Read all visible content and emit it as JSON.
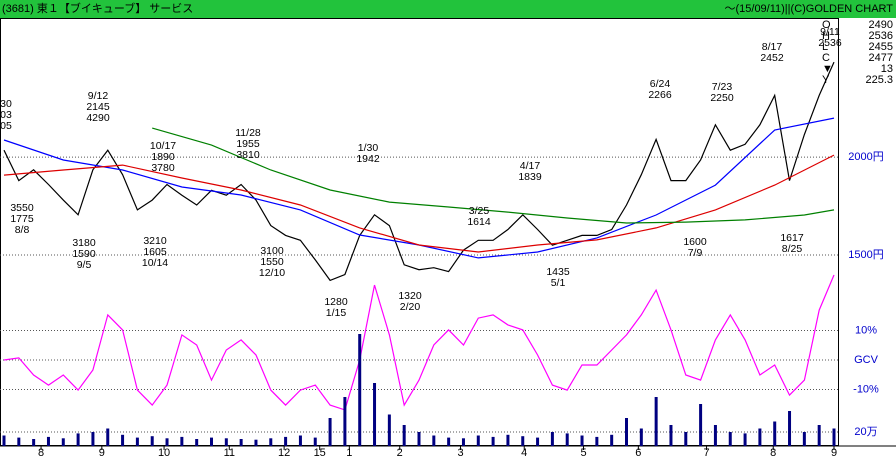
{
  "header": {
    "title": "(3681) 東１【ブイキューブ】 サービス",
    "source": "～(15/09/11)||(C)GOLDEN CHART"
  },
  "quote": [
    {
      "label": "O",
      "value": 2490
    },
    {
      "label": "H",
      "value": 2536
    },
    {
      "label": "L",
      "value": 2455
    },
    {
      "label": "C",
      "value": 2477
    },
    {
      "label": "▼",
      "value": 13
    },
    {
      "label": "Y",
      "value": 225.3
    }
  ],
  "annotations": [
    [
      "30",
      "03",
      "05"
    ],
    [
      "3550",
      "1775",
      "8/8"
    ],
    [
      "3180",
      "1590",
      "9/5"
    ],
    [
      "9/12",
      "2145",
      "4290"
    ],
    [
      "10/17",
      "1890",
      "3780"
    ],
    [
      "3210",
      "1605",
      "10/14"
    ],
    [
      "11/28",
      "1955",
      "3810"
    ],
    [
      "3100",
      "1550",
      "12/10"
    ],
    [
      "1/30",
      "1942"
    ],
    [
      "1280",
      "1/15"
    ],
    [
      "1320",
      "2/20"
    ],
    [
      "3/25",
      "1614"
    ],
    [
      "4/17",
      "1839"
    ],
    [
      "1435",
      "5/1"
    ],
    [
      "6/24",
      "2266"
    ],
    [
      "1600",
      "7/9"
    ],
    [
      "7/23",
      "2250"
    ],
    [
      "8/17",
      "2452"
    ],
    [
      "1617",
      "8/25"
    ],
    [
      "9/11",
      "2536"
    ]
  ],
  "chart_data": [
    {
      "type": "line",
      "x": [
        0,
        1,
        2,
        3,
        4,
        5,
        6,
        7,
        8,
        9,
        10,
        11,
        12,
        13,
        14,
        15,
        16,
        17,
        18,
        19,
        20,
        21,
        22,
        23,
        24,
        25,
        26,
        27,
        28,
        29,
        30,
        31,
        32,
        33,
        34,
        35,
        36,
        37,
        38,
        39,
        40,
        41,
        42,
        43,
        44,
        45,
        46,
        47,
        48,
        49,
        50,
        51,
        52,
        53,
        54,
        55,
        56
      ],
      "xlim": [
        0,
        56
      ],
      "xticks": [
        {
          "value": 2.5,
          "label": "8"
        },
        {
          "value": 6.6,
          "label": "9"
        },
        {
          "value": 10.8,
          "label": "10"
        },
        {
          "value": 15.2,
          "label": "11"
        },
        {
          "value": 18.9,
          "label": "12"
        },
        {
          "value": 21.3,
          "label": "15"
        },
        {
          "value": 23.3,
          "label": "1"
        },
        {
          "value": 26.7,
          "label": "2"
        },
        {
          "value": 30.8,
          "label": "3"
        },
        {
          "value": 35.1,
          "label": "4"
        },
        {
          "value": 39.1,
          "label": "5"
        },
        {
          "value": 42.8,
          "label": "6"
        },
        {
          "value": 47.4,
          "label": "7"
        },
        {
          "value": 51.9,
          "label": "8"
        },
        {
          "value": 56,
          "label": "9"
        }
      ],
      "ylim": [
        1270,
        2700
      ],
      "yticks": [
        {
          "value": 2000,
          "label": "2000円"
        },
        {
          "value": 1500,
          "label": "1500円"
        }
      ],
      "grid": true,
      "series": [
        {
          "color": "#000000",
          "values": [
            2035,
            1880,
            1935,
            1860,
            1780,
            1705,
            1935,
            2035,
            1910,
            1730,
            1780,
            1860,
            1805,
            1755,
            1830,
            1805,
            1860,
            1780,
            1650,
            1600,
            1575,
            1475,
            1370,
            1400,
            1600,
            1705,
            1650,
            1450,
            1425,
            1435,
            1415,
            1525,
            1575,
            1575,
            1630,
            1705,
            1630,
            1550,
            1575,
            1600,
            1600,
            1630,
            1755,
            1910,
            2090,
            1880,
            1880,
            1985,
            2165,
            2035,
            2065,
            2165,
            2315,
            1880,
            2115,
            2315,
            2485
          ]
        },
        {
          "color": "#0000ff",
          "x": [
            0,
            4,
            8,
            12,
            16,
            20,
            24,
            28,
            32,
            36,
            40,
            44,
            48,
            52,
            56
          ],
          "values": [
            2087,
            1985,
            1934,
            1847,
            1806,
            1730,
            1602,
            1551,
            1485,
            1515,
            1587,
            1704,
            1857,
            2138,
            2199
          ]
        },
        {
          "color": "#dd0000",
          "x": [
            0,
            4,
            8,
            12,
            16,
            20,
            24,
            28,
            32,
            36,
            40,
            44,
            48,
            52,
            56
          ],
          "values": [
            1908,
            1934,
            1959,
            1893,
            1832,
            1755,
            1638,
            1551,
            1515,
            1551,
            1577,
            1638,
            1730,
            1857,
            2010
          ]
        },
        {
          "color": "#008000",
          "x": [
            10,
            14,
            18,
            22,
            26,
            30,
            34,
            38,
            42,
            46,
            50,
            54,
            56
          ],
          "values": [
            2148,
            2061,
            1934,
            1832,
            1770,
            1745,
            1719,
            1689,
            1663,
            1668,
            1679,
            1704,
            1730
          ]
        }
      ]
    },
    {
      "type": "line",
      "x": [
        0,
        1,
        2,
        3,
        4,
        5,
        6,
        7,
        8,
        9,
        10,
        11,
        12,
        13,
        14,
        15,
        16,
        17,
        18,
        19,
        20,
        21,
        22,
        23,
        24,
        25,
        26,
        27,
        28,
        29,
        30,
        31,
        32,
        33,
        34,
        35,
        36,
        37,
        38,
        39,
        40,
        41,
        42,
        43,
        44,
        45,
        46,
        47,
        48,
        49,
        50,
        51,
        52,
        53,
        54,
        55,
        56
      ],
      "xlim": [
        0,
        56
      ],
      "ylim": [
        -20,
        30
      ],
      "yticks": [
        {
          "value": 10,
          "label": "10%"
        },
        {
          "value": 0,
          "label": "GCV"
        },
        {
          "value": -10,
          "label": "-10%"
        }
      ],
      "grid": true,
      "series": [
        {
          "color": "#ff00ff",
          "values": [
            0,
            0.7,
            -5.1,
            -8.5,
            -5.1,
            -10.2,
            -3.4,
            15.3,
            10.2,
            -10.2,
            -15.3,
            -8.5,
            8.5,
            5.1,
            -6.8,
            3.4,
            6.8,
            1.7,
            -10.2,
            -15.3,
            -10.2,
            -8.5,
            -15.3,
            -16.9,
            0,
            25.4,
            8.5,
            -15.3,
            -6.8,
            5.1,
            10.2,
            5.1,
            14.2,
            15.3,
            11.9,
            10.2,
            1.7,
            -8.5,
            -10.2,
            -1.7,
            -1.7,
            3.4,
            8.5,
            15.3,
            23.7,
            10.2,
            -5.1,
            -6.8,
            6.8,
            15.3,
            6.8,
            -5.1,
            -1.7,
            -11.9,
            -6.8,
            16.9,
            28.8
          ]
        }
      ]
    },
    {
      "type": "bar",
      "x": [
        0,
        1,
        2,
        3,
        4,
        5,
        6,
        7,
        8,
        9,
        10,
        11,
        12,
        13,
        14,
        15,
        16,
        17,
        18,
        19,
        20,
        21,
        22,
        23,
        24,
        25,
        26,
        27,
        28,
        29,
        30,
        31,
        32,
        33,
        34,
        35,
        36,
        37,
        38,
        39,
        40,
        41,
        42,
        43,
        44,
        45,
        46,
        47,
        48,
        49,
        50,
        51,
        52,
        53,
        54,
        55,
        56
      ],
      "xlim": [
        0,
        56
      ],
      "ylim": [
        0,
        1700000
      ],
      "yticks": [
        {
          "value": 200000,
          "label": "20万"
        }
      ],
      "color": "#000080",
      "values": [
        150000,
        120000,
        100000,
        130000,
        110000,
        180000,
        200000,
        250000,
        160000,
        120000,
        140000,
        110000,
        130000,
        100000,
        120000,
        110000,
        100000,
        90000,
        110000,
        130000,
        150000,
        120000,
        400000,
        700000,
        1600000,
        900000,
        450000,
        300000,
        200000,
        150000,
        120000,
        110000,
        150000,
        130000,
        160000,
        140000,
        120000,
        200000,
        180000,
        150000,
        130000,
        160000,
        400000,
        250000,
        700000,
        300000,
        200000,
        600000,
        300000,
        200000,
        180000,
        250000,
        350000,
        500000,
        200000,
        300000,
        250000
      ]
    }
  ]
}
